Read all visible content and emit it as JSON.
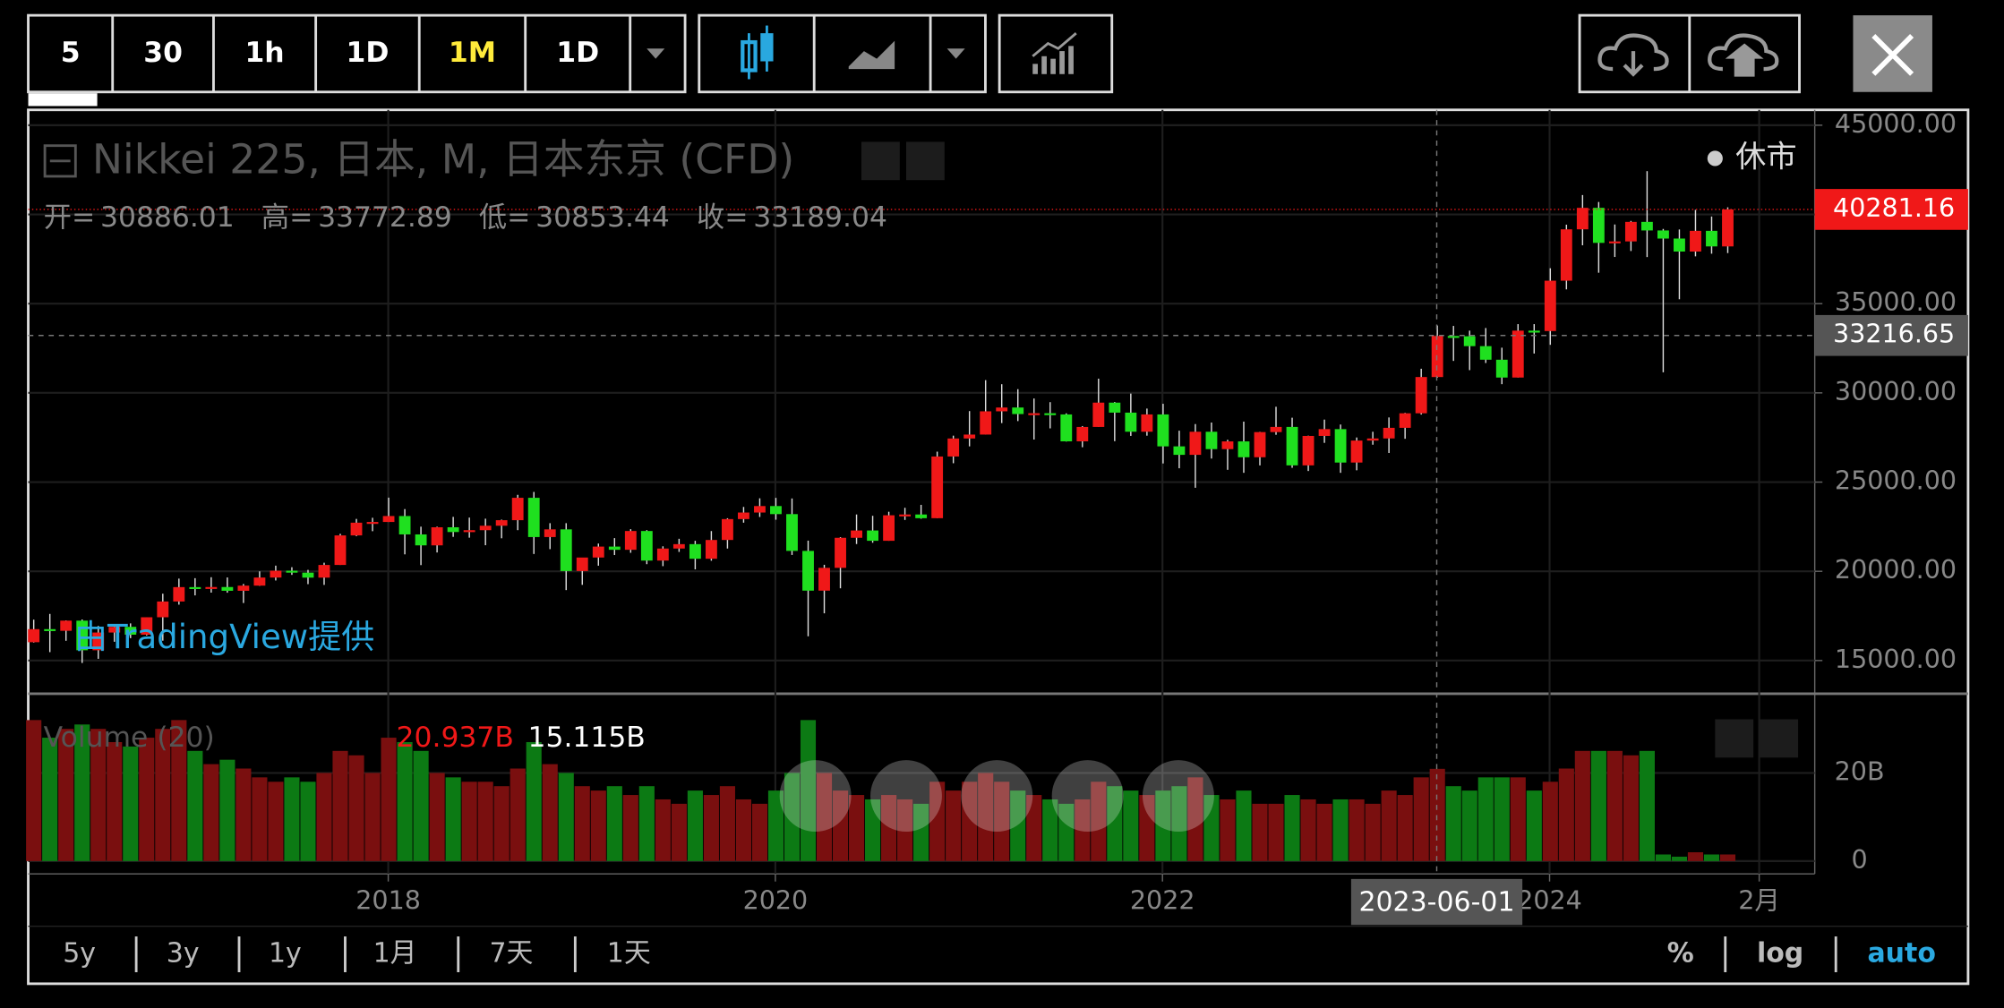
{
  "toolbar": {
    "intervals": [
      "5",
      "30",
      "1h",
      "1D",
      "1M",
      "1D"
    ],
    "active": 4
  },
  "chart_data": {
    "type": "candlestick",
    "title": "Nikkei 225, 日本, M, 日本东京 (CFD)",
    "status": "休市",
    "credit": "由TradingView提供",
    "ohlc_labels": [
      "开=",
      "高=",
      "低=",
      "收="
    ],
    "up_color": "#f01818",
    "down_color": "#1fe01f",
    "ylim": [
      13140,
      45860
    ],
    "yticks": [
      {
        "value": 15000,
        "label": "15000.00"
      },
      {
        "value": 20000,
        "label": "20000.00"
      },
      {
        "value": 25000,
        "label": "25000.00"
      },
      {
        "value": 30000,
        "label": "30000.00"
      },
      {
        "value": 35000,
        "label": "35000.00"
      },
      {
        "value": 40000,
        "label": "40000.00"
      },
      {
        "value": 45000,
        "label": "45000.00"
      }
    ],
    "xlim": [
      2016.14,
      2025.37
    ],
    "xticks": [
      2018,
      2020,
      2022,
      2024,
      {
        "value": 2025.083,
        "label": "2月"
      }
    ],
    "crosshair": {
      "x": {
        "value": 2023.417,
        "label": "2023-06-01"
      },
      "price": 33216.65
    },
    "grid": true,
    "candles": [
      [
        16027,
        17291,
        16005,
        16759
      ],
      [
        16759,
        17613,
        15471,
        16666
      ],
      [
        16666,
        17251,
        16106,
        17235
      ],
      [
        17235,
        17300,
        14864,
        15576
      ],
      [
        15576,
        16938,
        15096,
        16569
      ],
      [
        16569,
        17001,
        16051,
        16887
      ],
      [
        16887,
        17081,
        16254,
        16450
      ],
      [
        16450,
        17425,
        16402,
        17425
      ],
      [
        17425,
        18747,
        16111,
        18308
      ],
      [
        18308,
        19592,
        18131,
        19114
      ],
      [
        19114,
        19615,
        18650,
        19041
      ],
      [
        19041,
        19668,
        18805,
        19119
      ],
      [
        19119,
        19656,
        18800,
        18909
      ],
      [
        18909,
        19289,
        18224,
        19197
      ],
      [
        19197,
        19998,
        19187,
        19651
      ],
      [
        19651,
        20318,
        19486,
        20033
      ],
      [
        20033,
        20230,
        19800,
        19925
      ],
      [
        19925,
        20080,
        19280,
        19646
      ],
      [
        19646,
        20481,
        19239,
        20356
      ],
      [
        20356,
        22100,
        20356,
        22012
      ],
      [
        22012,
        22937,
        21972,
        22725
      ],
      [
        22725,
        23000,
        22248,
        22765
      ],
      [
        22765,
        24129,
        22765,
        23098
      ],
      [
        23098,
        23486,
        20950,
        22068
      ],
      [
        22068,
        22502,
        20347,
        21454
      ],
      [
        21454,
        22500,
        21056,
        22468
      ],
      [
        22468,
        23050,
        21931,
        22202
      ],
      [
        22202,
        23011,
        21885,
        22305
      ],
      [
        22305,
        22949,
        21462,
        22554
      ],
      [
        22554,
        22896,
        21851,
        22865
      ],
      [
        22865,
        24286,
        22307,
        24120
      ],
      [
        24120,
        24448,
        20971,
        21920
      ],
      [
        21920,
        22698,
        21243,
        22351
      ],
      [
        22351,
        22698,
        18948,
        20015
      ],
      [
        20015,
        20666,
        19241,
        20773
      ],
      [
        20773,
        21556,
        20315,
        21385
      ],
      [
        21385,
        21860,
        20911,
        21206
      ],
      [
        21206,
        22362,
        21038,
        22259
      ],
      [
        22259,
        22307,
        20400,
        20601
      ],
      [
        20601,
        21401,
        20289,
        21276
      ],
      [
        21276,
        21823,
        21087,
        21522
      ],
      [
        21522,
        21710,
        20110,
        20704
      ],
      [
        20704,
        22255,
        20593,
        21756
      ],
      [
        21756,
        22974,
        21276,
        22927
      ],
      [
        22927,
        23608,
        22725,
        23294
      ],
      [
        23294,
        24091,
        23044,
        23657
      ],
      [
        23657,
        24116,
        22892,
        23205
      ],
      [
        23205,
        24083,
        20916,
        21143
      ],
      [
        21143,
        21719,
        16358,
        18917
      ],
      [
        18917,
        20365,
        17646,
        20194
      ],
      [
        20194,
        21916,
        19048,
        21878
      ],
      [
        21878,
        23185,
        21529,
        22288
      ],
      [
        22288,
        23111,
        21600,
        21710
      ],
      [
        21710,
        23338,
        21710,
        23140
      ],
      [
        23140,
        23559,
        22879,
        23185
      ],
      [
        23185,
        23725,
        22948,
        22977
      ],
      [
        22977,
        26706,
        22977,
        26434
      ],
      [
        26434,
        27602,
        26057,
        27444
      ],
      [
        27444,
        28979,
        27002,
        27663
      ],
      [
        27663,
        30714,
        27663,
        28966
      ],
      [
        28966,
        30485,
        28308,
        29179
      ],
      [
        29179,
        30208,
        28419,
        28813
      ],
      [
        28813,
        29685,
        27385,
        28860
      ],
      [
        28860,
        29480,
        28010,
        28792
      ],
      [
        28792,
        28852,
        27272,
        27284
      ],
      [
        27284,
        28139,
        26954,
        28090
      ],
      [
        28090,
        30795,
        28090,
        29453
      ],
      [
        29453,
        29489,
        27293,
        28893
      ],
      [
        28893,
        29960,
        27588,
        27822
      ],
      [
        27822,
        29121,
        27600,
        28792
      ],
      [
        28792,
        29388,
        26044,
        27002
      ],
      [
        27002,
        27880,
        25775,
        26527
      ],
      [
        26527,
        28252,
        24681,
        27821
      ],
      [
        27821,
        28338,
        26319,
        26848
      ],
      [
        26848,
        27369,
        25688,
        27280
      ],
      [
        27280,
        28389,
        25520,
        26393
      ],
      [
        26393,
        27815,
        25935,
        27802
      ],
      [
        27802,
        29222,
        27650,
        28092
      ],
      [
        28092,
        28608,
        25800,
        25937
      ],
      [
        25937,
        27600,
        25621,
        27587
      ],
      [
        27587,
        28502,
        27199,
        27969
      ],
      [
        27969,
        28226,
        25520,
        26095
      ],
      [
        26095,
        27500,
        25661,
        27327
      ],
      [
        27327,
        27821,
        27095,
        27446
      ],
      [
        27446,
        28623,
        26632,
        28041
      ],
      [
        28041,
        28879,
        27427,
        28856
      ],
      [
        28856,
        31352,
        28784,
        30888
      ],
      [
        30886.01,
        33772.89,
        30853.44,
        33189.04
      ],
      [
        33189,
        33753,
        31791,
        33172
      ],
      [
        33172,
        33488,
        31275,
        32619
      ],
      [
        32619,
        33634,
        31674,
        31858
      ],
      [
        31858,
        32533,
        30487,
        30859
      ],
      [
        30859,
        33853,
        30859,
        33487
      ],
      [
        33487,
        33853,
        32205,
        33464
      ],
      [
        33464,
        36984,
        32693,
        36287
      ],
      [
        36287,
        39426,
        35800,
        39166
      ],
      [
        39166,
        41087,
        38271,
        40369
      ],
      [
        40369,
        40697,
        36733,
        38406
      ],
      [
        38406,
        39437,
        37617,
        38488
      ],
      [
        38488,
        39637,
        37950,
        39583
      ],
      [
        39583,
        42426,
        37611,
        39102
      ],
      [
        39102,
        39188,
        31156,
        38648
      ],
      [
        38648,
        39157,
        35247,
        37920
      ],
      [
        37920,
        40257,
        37651,
        39081
      ],
      [
        39081,
        39884,
        37800,
        38208
      ],
      [
        38208,
        40398,
        37835,
        40281.16
      ]
    ],
    "volume": {
      "name": "Volume (20)",
      "up_color": "#7a0f0f",
      "down_color": "#0c7a14",
      "ylim": [
        0,
        37.4
      ],
      "yticks": [
        0,
        {
          "value": 20,
          "label": "20B"
        }
      ],
      "legend": [
        {
          "value": 20.937,
          "label": "20.937B"
        },
        {
          "value": 15.115,
          "label": "15.115B"
        }
      ],
      "values": [
        32,
        28,
        30,
        31,
        30,
        27,
        26,
        28,
        30,
        32,
        25,
        22,
        23,
        21,
        19,
        18,
        19,
        18,
        20,
        25,
        24,
        20,
        28,
        27,
        25,
        20,
        19,
        18,
        18,
        17,
        21,
        27,
        22,
        20,
        17,
        16,
        17,
        15,
        17,
        14,
        13,
        16,
        15,
        17,
        14,
        13,
        16,
        20,
        32,
        20,
        16,
        15,
        14,
        15,
        14,
        13,
        18,
        16,
        18,
        20,
        18,
        16,
        15,
        14,
        13,
        14,
        18,
        17,
        16,
        15,
        16,
        17,
        19,
        15,
        14,
        16,
        13,
        13,
        15,
        14,
        13,
        14,
        14,
        13,
        16,
        15,
        19,
        20.937,
        17,
        16,
        19,
        19,
        19,
        16,
        18,
        21,
        25,
        25,
        25,
        24,
        25,
        1.5,
        1,
        2,
        1.5,
        1.5
      ]
    }
  },
  "footer": {
    "ranges": [
      "5y",
      "3y",
      "1y",
      "1月",
      "7天",
      "1天"
    ],
    "scales": [
      "%",
      "log",
      "auto"
    ],
    "active_scale": 2
  }
}
